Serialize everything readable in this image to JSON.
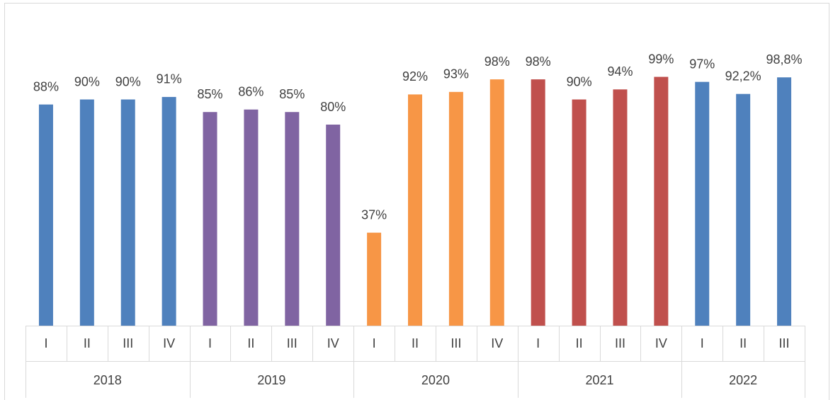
{
  "chart_data": {
    "type": "bar",
    "ylim": [
      0,
      100
    ],
    "series": [
      {
        "name": "2018",
        "color": "#4f81bd",
        "categories": [
          "I",
          "II",
          "III",
          "IV"
        ],
        "values": [
          88,
          90,
          90,
          91
        ],
        "value_labels": [
          "88%",
          "90%",
          "90%",
          "91%"
        ]
      },
      {
        "name": "2019",
        "color": "#8064a2",
        "categories": [
          "I",
          "II",
          "III",
          "IV"
        ],
        "values": [
          85,
          86,
          85,
          80
        ],
        "value_labels": [
          "85%",
          "86%",
          "85%",
          "80%"
        ]
      },
      {
        "name": "2020",
        "color": "#f79646",
        "categories": [
          "I",
          "II",
          "III",
          "IV"
        ],
        "values": [
          37,
          92,
          93,
          98
        ],
        "value_labels": [
          "37%",
          "92%",
          "93%",
          "98%"
        ]
      },
      {
        "name": "2021",
        "color": "#c0504d",
        "categories": [
          "I",
          "II",
          "III",
          "IV"
        ],
        "values": [
          98,
          90,
          94,
          99
        ],
        "value_labels": [
          "98%",
          "90%",
          "94%",
          "99%"
        ]
      },
      {
        "name": "2022",
        "color": "#4f81bd",
        "categories": [
          "I",
          "II",
          "III"
        ],
        "values": [
          97,
          92.2,
          98.8
        ],
        "value_labels": [
          "97%",
          "92,2%",
          "98,8%"
        ]
      }
    ]
  }
}
